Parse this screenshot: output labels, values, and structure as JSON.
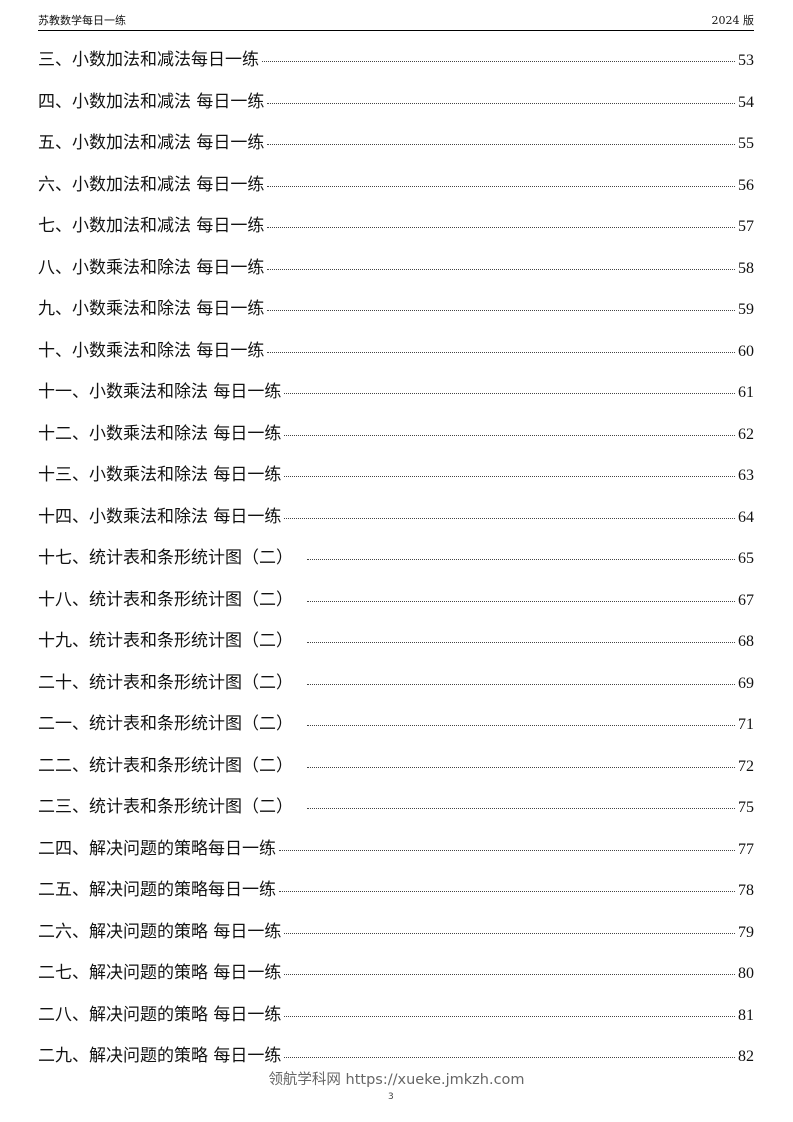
{
  "header": {
    "left": "苏教数学每日一练",
    "right": "2024 版"
  },
  "toc": [
    {
      "title": "三、小数加法和减法每日一练",
      "page": "53"
    },
    {
      "title": "四、小数加法和减法  每日一练",
      "page": "54"
    },
    {
      "title": "五、小数加法和减法  每日一练",
      "page": "55"
    },
    {
      "title": "六、小数加法和减法  每日一练",
      "page": "56"
    },
    {
      "title": "七、小数加法和减法  每日一练",
      "page": "57"
    },
    {
      "title": "八、小数乘法和除法  每日一练",
      "page": "58"
    },
    {
      "title": "九、小数乘法和除法  每日一练",
      "page": "59"
    },
    {
      "title": "十、小数乘法和除法  每日一练",
      "page": "60"
    },
    {
      "title": "十一、小数乘法和除法  每日一练",
      "page": "61"
    },
    {
      "title": "十二、小数乘法和除法  每日一练",
      "page": "62"
    },
    {
      "title": "十三、小数乘法和除法  每日一练",
      "page": "63"
    },
    {
      "title": "十四、小数乘法和除法  每日一练",
      "page": "64"
    },
    {
      "title": "十七、统计表和条形统计图（二）",
      "page": "65"
    },
    {
      "title": "十八、统计表和条形统计图（二）",
      "page": "67"
    },
    {
      "title": "十九、统计表和条形统计图（二）",
      "page": "68"
    },
    {
      "title": "二十、统计表和条形统计图（二）",
      "page": "69"
    },
    {
      "title": "二一、统计表和条形统计图（二）",
      "page": "71"
    },
    {
      "title": "二二、统计表和条形统计图（二）",
      "page": "72"
    },
    {
      "title": "二三、统计表和条形统计图（二）",
      "page": "75"
    },
    {
      "title": "二四、解决问题的策略每日一练",
      "page": "77"
    },
    {
      "title": "二五、解决问题的策略每日一练",
      "page": "78"
    },
    {
      "title": "二六、解决问题的策略  每日一练",
      "page": "79"
    },
    {
      "title": "二七、解决问题的策略  每日一练",
      "page": "80"
    },
    {
      "title": "二八、解决问题的策略  每日一练",
      "page": "81"
    },
    {
      "title": "二九、解决问题的策略  每日一练",
      "page": "82"
    }
  ],
  "footer": {
    "watermark": "领航学科网 https://xueke.jmkzh.com",
    "page_number": "3"
  }
}
